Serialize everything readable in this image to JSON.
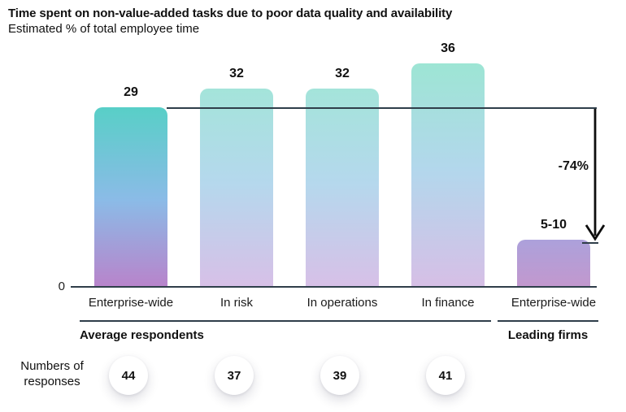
{
  "chart_data": {
    "type": "bar",
    "title": "Time spent on non-value-added tasks due to poor data quality and availability",
    "subtitle": "Estimated % of total employee time",
    "categories": [
      "Enterprise-wide",
      "In risk",
      "In operations",
      "In finance",
      "Enterprise-wide"
    ],
    "values": [
      "29",
      "32",
      "32",
      "36",
      "5-10"
    ],
    "ylim": [
      0,
      38
    ],
    "y_zero_label": "0",
    "grid": false,
    "legend": "none",
    "reference_line_value": 29,
    "annotation": {
      "label": "-74%"
    },
    "groups": [
      {
        "label": "Average respondents",
        "bars": [
          "Enterprise-wide",
          "In risk",
          "In operations",
          "In finance"
        ]
      },
      {
        "label": "Leading firms",
        "bars": [
          "Enterprise-wide"
        ]
      }
    ],
    "responses": {
      "row_label": "Numbers of responses",
      "values": [
        "44",
        "37",
        "39",
        "41"
      ]
    },
    "bar_gradients": [
      [
        "#58CFC7",
        "#8BBBE7 52%",
        "#B884CB"
      ],
      [
        "#A4E4DA",
        "#B5D8ED 48%",
        "#D7C0E7"
      ],
      [
        "#A4E4DA",
        "#B5D8ED 48%",
        "#D7C0E7"
      ],
      [
        "#9DE5D4",
        "#B3D7EC 48%",
        "#D6BFE6"
      ],
      [
        "#ACA1DB",
        "#C298CE"
      ]
    ]
  },
  "colors": {
    "axis_line": "#2f3e4a",
    "arrow": "#0d0d0d",
    "text": "#111111",
    "circle_bg": "#ffffff"
  }
}
